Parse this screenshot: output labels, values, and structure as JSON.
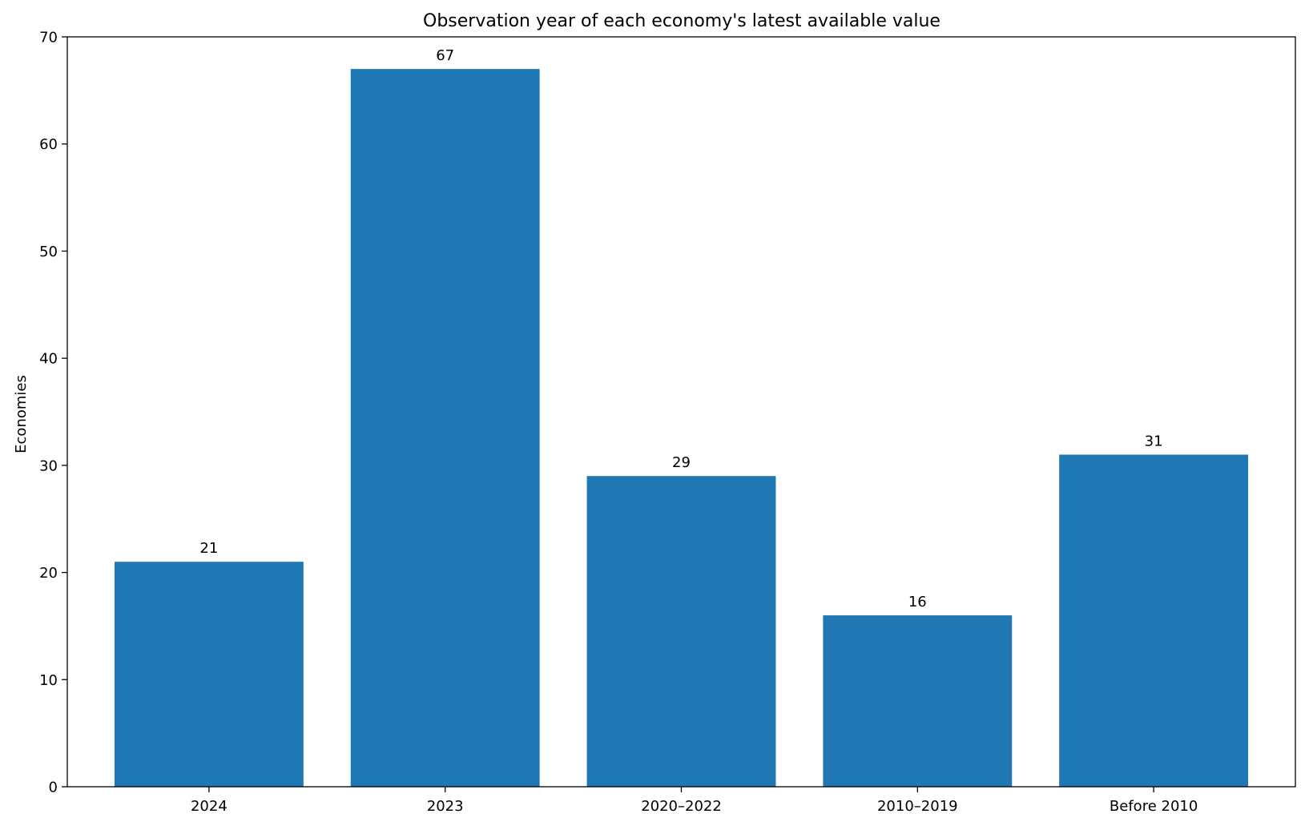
{
  "chart_data": {
    "type": "bar",
    "title": "Observation year of each economy's latest available value",
    "xlabel": "",
    "ylabel": "Economies",
    "categories": [
      "2024",
      "2023",
      "2020–2022",
      "2010–2019",
      "Before 2010"
    ],
    "values": [
      21,
      67,
      29,
      16,
      31
    ],
    "ylim": [
      0,
      70
    ],
    "yticks": [
      0,
      10,
      20,
      30,
      40,
      50,
      60,
      70
    ],
    "grid": false,
    "legend": "none",
    "bar_color": "#1f77b4"
  }
}
